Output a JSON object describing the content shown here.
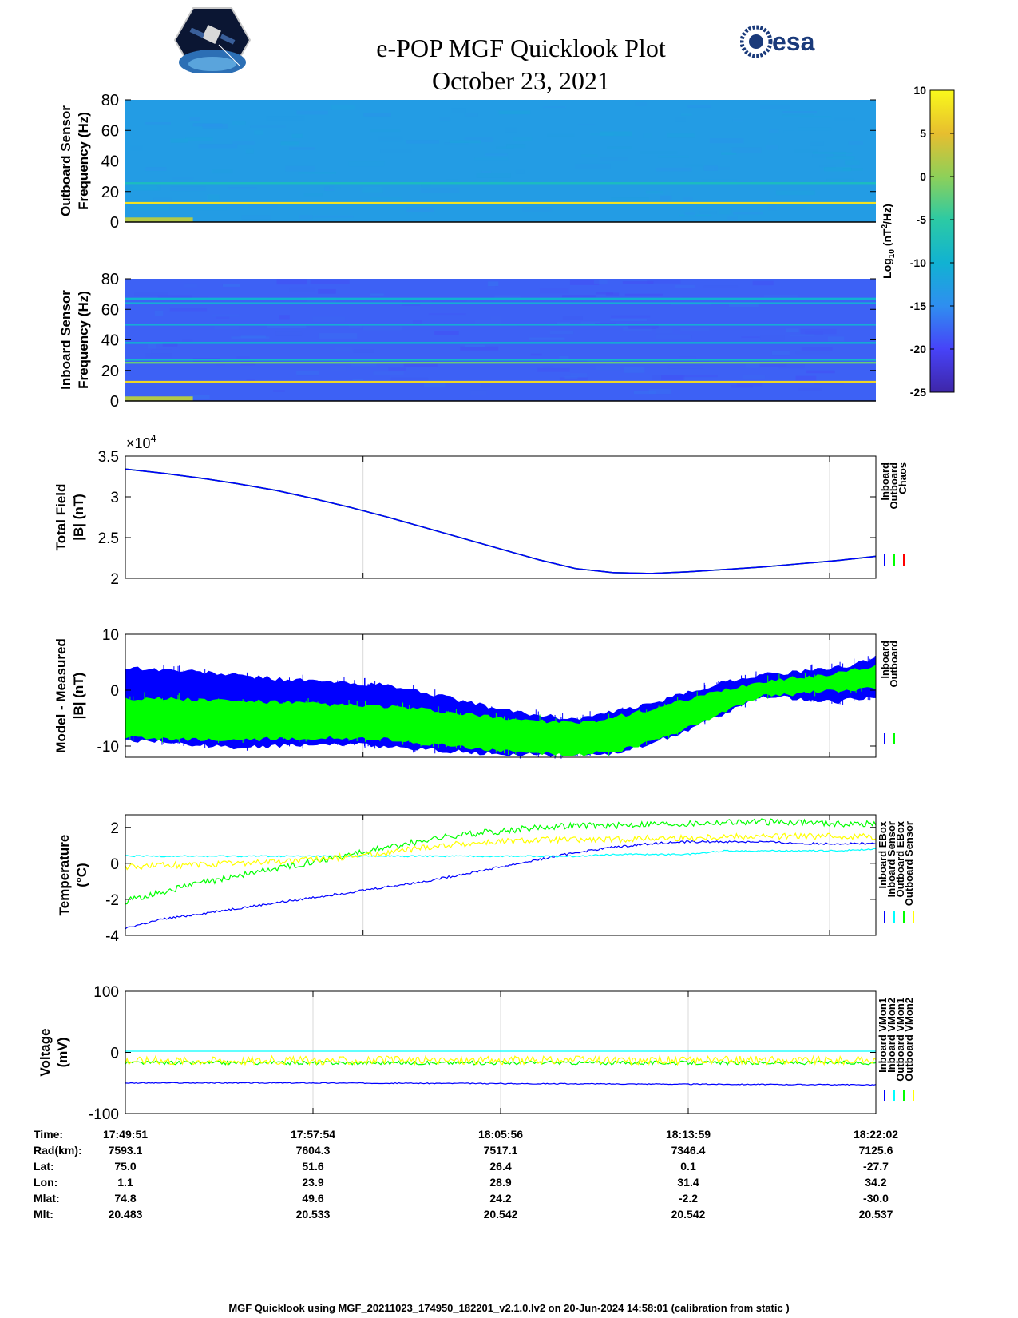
{
  "title": "e-POP MGF Quicklook Plot",
  "subtitle": "October 23, 2021",
  "logos": {
    "left": "cassiope-mission-logo",
    "right_text": "esa"
  },
  "colorbar": {
    "label": "Log10 (nT2/Hz)",
    "label_base": "Log",
    "label_sub": "10",
    "label_mid": " (nT",
    "label_sup": "2",
    "label_end": "/Hz)",
    "ticks": [
      "10",
      "5",
      "0",
      "-5",
      "-10",
      "-15",
      "-20",
      "-25"
    ],
    "range": [
      -25,
      10
    ],
    "colormap": [
      "#3e26a8",
      "#4743f8",
      "#2f8ef0",
      "#11b2d2",
      "#2ccaa4",
      "#8ed059",
      "#e7be2f",
      "#f9f91b"
    ]
  },
  "ephemeris": {
    "labels": [
      "Time:",
      "Rad(km):",
      "Lat:",
      "Lon:",
      "Mlat:",
      "Mlt:"
    ],
    "columns": [
      [
        "17:49:51",
        "7593.1",
        "75.0",
        "1.1",
        "74.8",
        "20.483"
      ],
      [
        "17:57:54",
        "7604.3",
        "51.6",
        "23.9",
        "49.6",
        "20.533"
      ],
      [
        "18:05:56",
        "7517.1",
        "26.4",
        "28.9",
        "24.2",
        "20.542"
      ],
      [
        "18:13:59",
        "7346.4",
        "0.1",
        "31.4",
        "-2.2",
        "20.542"
      ],
      [
        "18:22:02",
        "7125.6",
        "-27.7",
        "34.2",
        "-30.0",
        "20.537"
      ]
    ]
  },
  "footer": "MGF Quicklook using MGF_20211023_174950_182201_v2.1.0.lv2 on 20-Jun-2024 14:58:01 (calibration from static )",
  "chart_data": [
    {
      "type": "heatmap",
      "name": "outboard-spectrogram",
      "ylabel_line1": "Outboard Sensor",
      "ylabel_line2": "Frequency (Hz)",
      "ylim": [
        0,
        80
      ],
      "yticks": [
        "0",
        "20",
        "40",
        "60",
        "80"
      ],
      "background_level": -13,
      "lines": [
        {
          "freq": 12.5,
          "level": 8
        },
        {
          "freq": 25.5,
          "level": -8
        }
      ],
      "low_freq_activity": {
        "time_end_fraction": 0.09,
        "max_freq": 3,
        "level": 2
      }
    },
    {
      "type": "heatmap",
      "name": "inboard-spectrogram",
      "ylabel_line1": "Inboard Sensor",
      "ylabel_line2": "Frequency (Hz)",
      "ylim": [
        0,
        80
      ],
      "yticks": [
        "0",
        "20",
        "40",
        "60",
        "80"
      ],
      "background_level": -18,
      "lines": [
        {
          "freq": 12.5,
          "level": 7
        },
        {
          "freq": 25,
          "level": -2
        },
        {
          "freq": 27,
          "level": -9
        },
        {
          "freq": 38,
          "level": -10
        },
        {
          "freq": 50,
          "level": -11
        },
        {
          "freq": 64,
          "level": -11
        },
        {
          "freq": 67,
          "level": -10
        }
      ],
      "low_freq_activity": {
        "time_end_fraction": 0.09,
        "max_freq": 3,
        "level": 2
      }
    },
    {
      "type": "line",
      "name": "total-field",
      "ylabel_line1": "Total Field",
      "ylabel_line2": "|B| (nT)",
      "ylim": [
        2,
        3.5
      ],
      "yticks": [
        "2",
        "2.5",
        "3",
        "3.5"
      ],
      "exponent_label": "×10",
      "exponent_sup": "4",
      "x": [
        0,
        0.05,
        0.1,
        0.15,
        0.2,
        0.25,
        0.3,
        0.35,
        0.4,
        0.45,
        0.5,
        0.55,
        0.6,
        0.65,
        0.7,
        0.75,
        0.8,
        0.85,
        0.9,
        0.95,
        1.0
      ],
      "series": [
        {
          "name": "Inboard",
          "color": "#0000ff",
          "values": [
            3.34,
            3.29,
            3.23,
            3.16,
            3.08,
            2.98,
            2.87,
            2.75,
            2.62,
            2.49,
            2.36,
            2.23,
            2.12,
            2.07,
            2.06,
            2.08,
            2.11,
            2.14,
            2.18,
            2.22,
            2.27
          ]
        },
        {
          "name": "Outboard",
          "color": "#00ff00",
          "values": [
            3.34,
            3.29,
            3.23,
            3.16,
            3.08,
            2.98,
            2.87,
            2.75,
            2.62,
            2.49,
            2.36,
            2.23,
            2.12,
            2.07,
            2.06,
            2.08,
            2.11,
            2.14,
            2.18,
            2.22,
            2.27
          ]
        },
        {
          "name": "Chaos",
          "color": "#ff0000",
          "values": [
            3.34,
            3.29,
            3.23,
            3.16,
            3.08,
            2.98,
            2.87,
            2.75,
            2.62,
            2.49,
            2.36,
            2.23,
            2.12,
            2.07,
            2.06,
            2.08,
            2.11,
            2.14,
            2.18,
            2.22,
            2.27
          ]
        }
      ]
    },
    {
      "type": "area",
      "name": "model-minus-measured",
      "ylabel_line1": "Model - Measured",
      "ylabel_line2": "|B| (nT)",
      "ylim": [
        -12,
        10
      ],
      "yticks": [
        "-10",
        "0",
        "10"
      ],
      "x": [
        0,
        0.05,
        0.1,
        0.15,
        0.2,
        0.25,
        0.3,
        0.35,
        0.4,
        0.45,
        0.5,
        0.55,
        0.6,
        0.65,
        0.7,
        0.75,
        0.8,
        0.85,
        0.9,
        0.95,
        1.0
      ],
      "series": [
        {
          "name": "Inboard",
          "color": "#0000ff",
          "upper": [
            4,
            3.6,
            3.2,
            2.6,
            2.0,
            1.6,
            1.2,
            0.8,
            -0.5,
            -2.0,
            -3.5,
            -4.5,
            -5.2,
            -4.0,
            -2.5,
            -0.5,
            1.5,
            2.8,
            3.2,
            4.0,
            5.5
          ],
          "lower": [
            -9,
            -9.2,
            -9.8,
            -10.2,
            -10.0,
            -9.6,
            -9.6,
            -10.0,
            -10.6,
            -11.0,
            -11.4,
            -11.5,
            -11.5,
            -11.2,
            -9.5,
            -7.0,
            -4.0,
            -1.0,
            -1.5,
            -2.0,
            -1.0
          ]
        },
        {
          "name": "Outboard",
          "color": "#00ff00",
          "upper": [
            -1.5,
            -1.6,
            -1.8,
            -2.0,
            -2.2,
            -2.5,
            -2.8,
            -3.0,
            -3.6,
            -4.4,
            -5.0,
            -5.5,
            -6.0,
            -5.0,
            -3.5,
            -1.8,
            0.0,
            1.5,
            2.2,
            3.0,
            4.2
          ],
          "lower": [
            -8.5,
            -8.6,
            -8.8,
            -8.8,
            -8.6,
            -8.5,
            -8.5,
            -8.7,
            -9.5,
            -10.0,
            -10.8,
            -11.2,
            -11.5,
            -11.0,
            -9.2,
            -6.5,
            -3.6,
            -1.0,
            -0.5,
            0.0,
            0.5
          ]
        }
      ]
    },
    {
      "type": "line",
      "name": "temperature",
      "ylabel_line1": "Temperature",
      "ylabel_line2": "(°C)",
      "ylim": [
        -4,
        2.7
      ],
      "yticks": [
        "-4",
        "-2",
        "0",
        "2"
      ],
      "x": [
        0,
        0.05,
        0.1,
        0.15,
        0.2,
        0.25,
        0.3,
        0.35,
        0.4,
        0.45,
        0.5,
        0.55,
        0.6,
        0.65,
        0.7,
        0.75,
        0.8,
        0.85,
        0.9,
        0.95,
        1.0
      ],
      "series": [
        {
          "name": "Inboard EBox",
          "color": "#0000ff",
          "values": [
            -3.6,
            -3.1,
            -2.8,
            -2.5,
            -2.2,
            -1.9,
            -1.6,
            -1.3,
            -1.0,
            -0.6,
            -0.2,
            0.2,
            0.6,
            0.9,
            1.1,
            1.2,
            1.2,
            1.2,
            1.1,
            1.1,
            1.1
          ]
        },
        {
          "name": "Inboard Sensor",
          "color": "#00ffff",
          "values": [
            0.4,
            0.4,
            0.4,
            0.4,
            0.4,
            0.4,
            0.4,
            0.4,
            0.4,
            0.4,
            0.4,
            0.4,
            0.4,
            0.5,
            0.5,
            0.5,
            0.7,
            0.7,
            0.7,
            0.7,
            0.8
          ]
        },
        {
          "name": "Outboard EBox",
          "color": "#00ff00",
          "values": [
            -2.1,
            -1.6,
            -1.1,
            -0.7,
            -0.3,
            0.1,
            0.5,
            0.9,
            1.3,
            1.6,
            1.8,
            2.0,
            2.1,
            2.1,
            2.2,
            2.2,
            2.3,
            2.3,
            2.3,
            2.2,
            2.2
          ]
        },
        {
          "name": "Outboard Sensor",
          "color": "#ffff00",
          "values": [
            -0.2,
            -0.1,
            -0.1,
            0.0,
            0.1,
            0.2,
            0.4,
            0.6,
            0.9,
            1.1,
            1.2,
            1.3,
            1.3,
            1.3,
            1.4,
            1.4,
            1.5,
            1.5,
            1.5,
            1.5,
            1.5
          ]
        }
      ]
    },
    {
      "type": "line",
      "name": "voltage",
      "ylabel_line1": "Voltage",
      "ylabel_line2": "(mV)",
      "ylim": [
        -100,
        100
      ],
      "yticks": [
        "-100",
        "0",
        "100"
      ],
      "x": [
        0,
        0.25,
        0.5,
        0.75,
        1.0
      ],
      "series": [
        {
          "name": "Inboard VMon1",
          "color": "#0000ff",
          "values": [
            -50,
            -50,
            -51,
            -52,
            -53
          ]
        },
        {
          "name": "Inboard VMon2",
          "color": "#00ffff",
          "values": [
            2,
            2,
            2,
            2,
            2
          ]
        },
        {
          "name": "Outboard VMon1",
          "color": "#00ff00",
          "values": [
            -17,
            -17,
            -17,
            -17,
            -17
          ]
        },
        {
          "name": "Outboard VMon2",
          "color": "#ffff00",
          "values": [
            -13,
            -13,
            -13,
            -13,
            -13
          ]
        }
      ]
    }
  ]
}
